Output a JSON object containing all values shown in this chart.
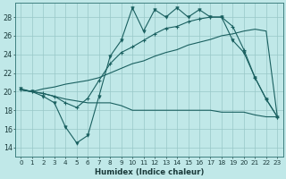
{
  "bg_color": "#c0e8e8",
  "grid_color": "#98c8c8",
  "line_color": "#1a6060",
  "xlabel": "Humidex (Indice chaleur)",
  "ylim": [
    13,
    29.5
  ],
  "xlim": [
    -0.5,
    23.5
  ],
  "yticks": [
    14,
    16,
    18,
    20,
    22,
    24,
    26,
    28
  ],
  "xtick_labels": [
    "0",
    "1",
    "2",
    "3",
    "4",
    "5",
    "6",
    "7",
    "8",
    "9",
    "10",
    "11",
    "12",
    "13",
    "14",
    "15",
    "16",
    "17",
    "18",
    "19",
    "20",
    "21",
    "22",
    "23"
  ],
  "s1_x": [
    0,
    1,
    2,
    3,
    4,
    5,
    6,
    7,
    8,
    9,
    10,
    11,
    12,
    13,
    14,
    15,
    16,
    17,
    18,
    19,
    20,
    21,
    22,
    23
  ],
  "s1_y": [
    20.3,
    20.0,
    19.5,
    18.8,
    16.2,
    14.5,
    15.3,
    19.5,
    23.8,
    25.5,
    29.0,
    26.5,
    28.8,
    28.0,
    29.0,
    28.0,
    28.8,
    28.0,
    28.0,
    25.5,
    24.2,
    21.5,
    19.2,
    17.3
  ],
  "s2_x": [
    0,
    1,
    2,
    3,
    4,
    5,
    6,
    7,
    8,
    9,
    10,
    11,
    12,
    13,
    14,
    15,
    16,
    17,
    18,
    19,
    20,
    21,
    22,
    23
  ],
  "s2_y": [
    20.2,
    20.0,
    20.3,
    20.5,
    20.8,
    21.0,
    21.2,
    21.5,
    22.0,
    22.5,
    23.0,
    23.3,
    23.8,
    24.2,
    24.5,
    25.0,
    25.3,
    25.6,
    26.0,
    26.2,
    26.5,
    26.7,
    26.5,
    17.3
  ],
  "s3_x": [
    0,
    1,
    2,
    3,
    4,
    5,
    6,
    7,
    8,
    9,
    10,
    11,
    12,
    13,
    14,
    15,
    16,
    17,
    18,
    19,
    20,
    21,
    22,
    23
  ],
  "s3_y": [
    20.2,
    20.0,
    19.8,
    19.5,
    19.2,
    19.0,
    18.8,
    18.8,
    18.8,
    18.5,
    18.0,
    18.0,
    18.0,
    18.0,
    18.0,
    18.0,
    18.0,
    18.0,
    17.8,
    17.8,
    17.8,
    17.5,
    17.3,
    17.3
  ],
  "s4_x": [
    0,
    1,
    2,
    3,
    4,
    5,
    6,
    7,
    8,
    9,
    10,
    11,
    12,
    13,
    14,
    15,
    16,
    17,
    18,
    19,
    20,
    21,
    22,
    23
  ],
  "s4_y": [
    20.2,
    20.0,
    19.8,
    19.5,
    18.8,
    18.3,
    19.3,
    21.2,
    23.0,
    24.2,
    24.8,
    25.5,
    26.2,
    26.8,
    27.0,
    27.5,
    27.8,
    28.0,
    28.0,
    27.0,
    24.5,
    21.5,
    19.2,
    17.3
  ],
  "s1_marker_x": [
    0,
    1,
    2,
    3,
    4,
    5,
    6,
    7,
    8,
    9,
    10,
    11,
    12,
    13,
    14,
    15,
    16,
    17,
    18,
    19,
    20,
    21,
    22,
    23
  ],
  "s2_marker_x": [
    0,
    1,
    2,
    3,
    7,
    8,
    9,
    10,
    11,
    12,
    13,
    14,
    15,
    16,
    17,
    18,
    19,
    20,
    21,
    22,
    23
  ]
}
